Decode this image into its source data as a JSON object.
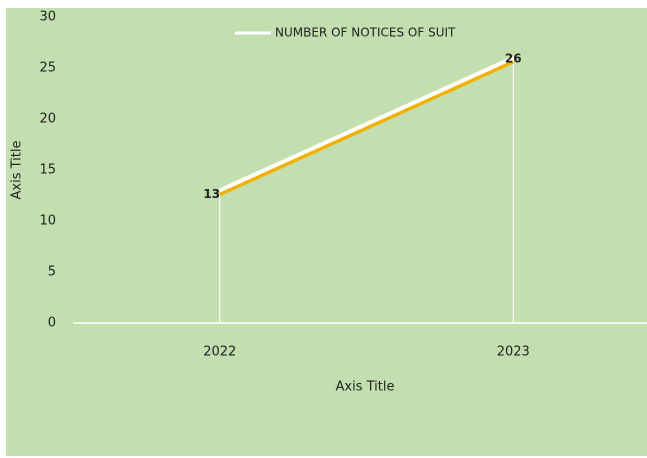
{
  "chart_data": {
    "type": "line",
    "categories": [
      "2022",
      "2023"
    ],
    "series": [
      {
        "name": "NUMBER OF NOTICES OF SUIT",
        "color": "#ffffff",
        "shadow_color": "#f2b000",
        "values": [
          13,
          26
        ]
      }
    ],
    "ylim": [
      0,
      30
    ],
    "yticks": [
      0,
      5,
      10,
      15,
      20,
      25,
      30
    ],
    "x_axis_title": "Axis Title",
    "y_axis_title": "Axis Title",
    "drop_lines": true,
    "legend": "top",
    "background": "#c3dfb0"
  }
}
